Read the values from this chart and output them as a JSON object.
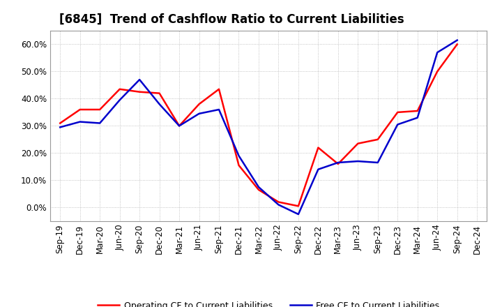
{
  "title": "[6845]  Trend of Cashflow Ratio to Current Liabilities",
  "x_labels": [
    "Sep-19",
    "Dec-19",
    "Mar-20",
    "Jun-20",
    "Sep-20",
    "Dec-20",
    "Mar-21",
    "Jun-21",
    "Sep-21",
    "Dec-21",
    "Mar-22",
    "Jun-22",
    "Sep-22",
    "Dec-22",
    "Mar-23",
    "Jun-23",
    "Sep-23",
    "Dec-23",
    "Mar-24",
    "Jun-24",
    "Sep-24",
    "Dec-24"
  ],
  "operating_cf": [
    0.31,
    0.36,
    0.36,
    0.435,
    0.425,
    0.42,
    0.3,
    0.38,
    0.435,
    0.155,
    0.065,
    0.02,
    0.005,
    0.22,
    0.16,
    0.235,
    0.25,
    0.35,
    0.355,
    0.5,
    0.6,
    null
  ],
  "free_cf": [
    0.295,
    0.315,
    0.31,
    0.395,
    0.47,
    0.38,
    0.3,
    0.345,
    0.36,
    0.19,
    0.075,
    0.01,
    -0.025,
    0.14,
    0.165,
    0.17,
    0.165,
    0.305,
    0.33,
    0.57,
    0.615,
    null
  ],
  "operating_color": "#ff0000",
  "free_color": "#0000cc",
  "background_color": "#ffffff",
  "plot_bg_color": "#ffffff",
  "grid_color": "#aaaaaa",
  "ylim": [
    -0.05,
    0.65
  ],
  "yticks": [
    0.0,
    0.1,
    0.2,
    0.3,
    0.4,
    0.5,
    0.6
  ],
  "legend_operating": "Operating CF to Current Liabilities",
  "legend_free": "Free CF to Current Liabilities",
  "title_fontsize": 12,
  "label_fontsize": 8.5,
  "legend_fontsize": 9,
  "linewidth": 1.8
}
